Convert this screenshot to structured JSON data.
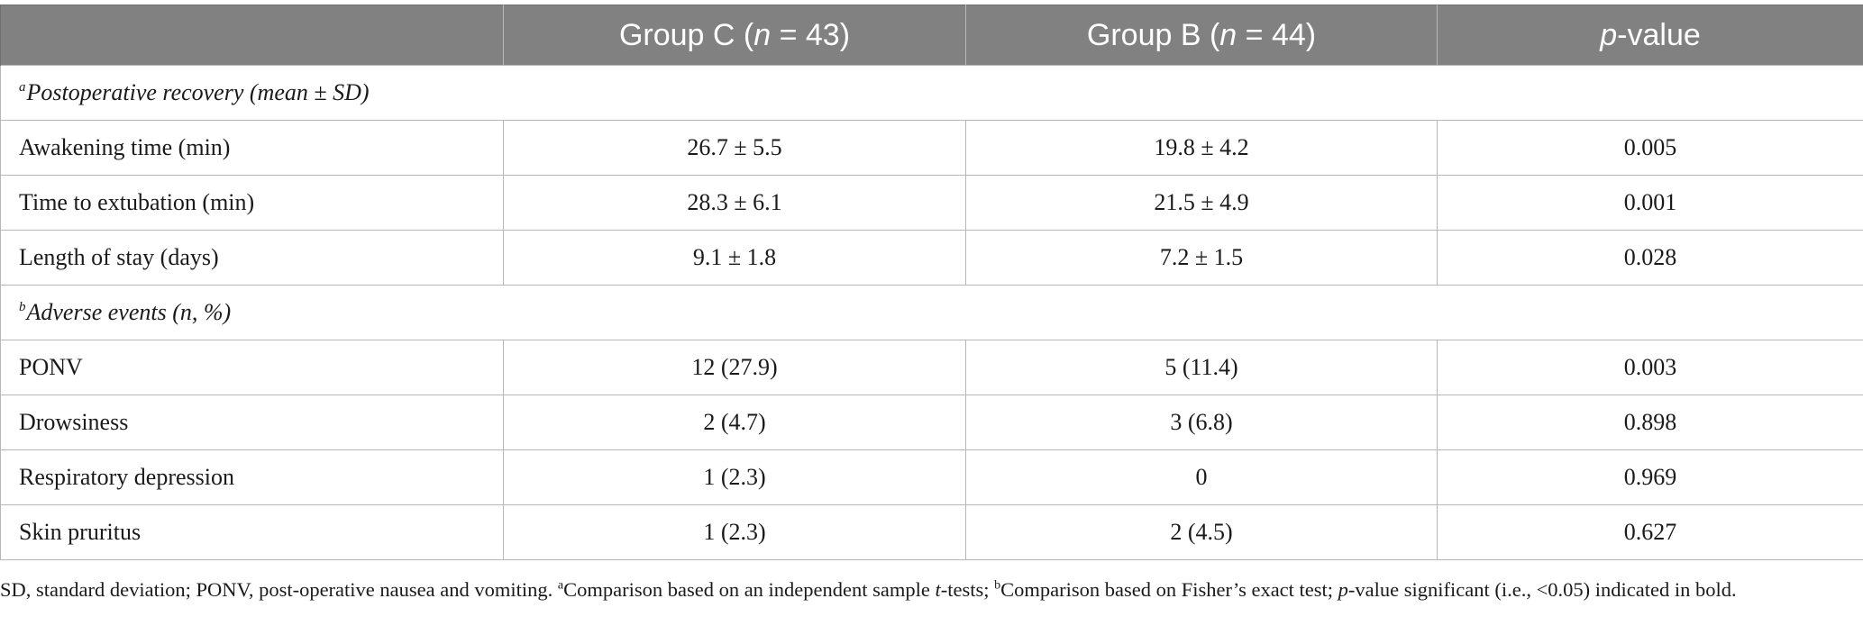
{
  "table": {
    "header": {
      "col0": "",
      "group_c_label": "Group C (",
      "group_c_n": "n",
      "group_c_count": " = 43)",
      "group_b_label": "Group B (",
      "group_b_n": "n",
      "group_b_count": " = 44)",
      "p_italic": "p",
      "p_rest": "-value"
    },
    "sections": [
      {
        "marker": "a",
        "title": "Postoperative recovery (mean ± SD)",
        "rows": [
          {
            "label": "Awakening time (min)",
            "group_c": "26.7 ± 5.5",
            "group_b": "19.8 ± 4.2",
            "p": "0.005"
          },
          {
            "label": "Time to extubation (min)",
            "group_c": "28.3 ± 6.1",
            "group_b": "21.5 ± 4.9",
            "p": "0.001"
          },
          {
            "label": "Length of stay (days)",
            "group_c": "9.1 ± 1.8",
            "group_b": "7.2 ± 1.5",
            "p": "0.028"
          }
        ]
      },
      {
        "marker": "b",
        "title": "Adverse events (n, %)",
        "rows": [
          {
            "label": "PONV",
            "group_c": "12 (27.9)",
            "group_b": "5 (11.4)",
            "p": "0.003"
          },
          {
            "label": "Drowsiness",
            "group_c": "2 (4.7)",
            "group_b": "3 (6.8)",
            "p": "0.898"
          },
          {
            "label": "Respiratory depression",
            "group_c": "1 (2.3)",
            "group_b": "0",
            "p": "0.969"
          },
          {
            "label": "Skin pruritus",
            "group_c": "1 (2.3)",
            "group_b": "2 (4.5)",
            "p": "0.627"
          }
        ]
      }
    ]
  },
  "footnote": {
    "part1": "SD, standard deviation; PONV, post-operative nausea and vomiting. ",
    "sup_a": "a",
    "part2": "Comparison based on an independent sample ",
    "t_italic": "t",
    "part3": "-tests; ",
    "sup_b": "b",
    "part4": "Comparison based on Fisher’s exact test; ",
    "p_italic": "p",
    "part5": "-value significant (i.e., <0.05) indicated in bold."
  }
}
